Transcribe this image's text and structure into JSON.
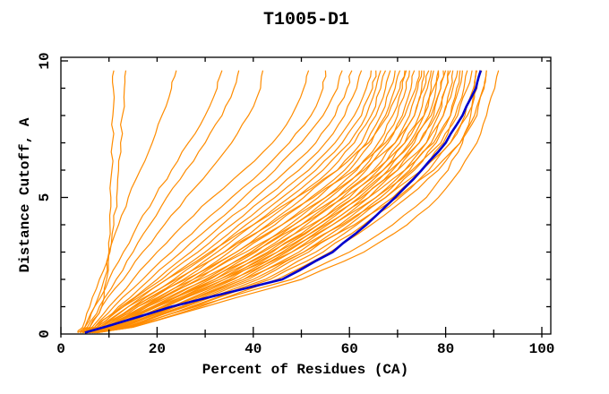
{
  "figure": {
    "background": "#ffffff",
    "frame_color": "#000000"
  },
  "chart_data": {
    "type": "line",
    "title": "T1005-D1",
    "xlabel": "Percent of Residues (CA)",
    "ylabel": "Distance Cutoff, A",
    "xlim": [
      0,
      100
    ],
    "ylim": [
      0,
      10
    ],
    "grid": "off",
    "legend": "none",
    "tick_style": "mirrored, pointing inward, minor ticks x every 10, y every 1",
    "x_major_ticks": [
      0,
      20,
      40,
      60,
      80,
      100
    ],
    "x_minor_ticks": [
      10,
      30,
      50,
      70,
      90
    ],
    "x_tick_labels": [
      "0",
      "20",
      "40",
      "60",
      "80",
      "100"
    ],
    "y_major_ticks": [
      0,
      5,
      10
    ],
    "y_minor_ticks": [
      1,
      2,
      3,
      4,
      6,
      7,
      8,
      9
    ],
    "y_tick_labels": [
      "0",
      "5",
      "10"
    ],
    "colors": {
      "predictions": "#ff8c00",
      "highlight": "#0000cd",
      "axis": "#000000"
    },
    "cutoffs": [
      0.05,
      0.25,
      1,
      2,
      3,
      4,
      5,
      6,
      7,
      8,
      9,
      9.65
    ],
    "highlight_series": {
      "name": "highlighted-model",
      "color": "#0000cd",
      "values": [
        5,
        9,
        23,
        46,
        56.5,
        63.5,
        69.5,
        75,
        80,
        83.5,
        86.3,
        87.3
      ]
    },
    "prediction_series": {
      "name": "predictions",
      "color": "#ff8c00",
      "values": [
        [
          4,
          6,
          8.5,
          9.5,
          10,
          10.2,
          10.4,
          10.6,
          10.7,
          10.8,
          10.9,
          11
        ],
        [
          3.5,
          5,
          7,
          9,
          10.2,
          11,
          11.6,
          12,
          12.4,
          12.8,
          13.2,
          13.5
        ],
        [
          3.5,
          4.5,
          6,
          8,
          10,
          12,
          14,
          16.5,
          19,
          21,
          23,
          24
        ],
        [
          4,
          5,
          7,
          10,
          13,
          16,
          19.5,
          23,
          26.5,
          30,
          32.5,
          33.5
        ],
        [
          4,
          5.5,
          8,
          11.5,
          15,
          18.5,
          22,
          26,
          30,
          33.5,
          36,
          37
        ],
        [
          4.5,
          6,
          8.5,
          13,
          17,
          21.5,
          26,
          31,
          35.5,
          39,
          41.5,
          42
        ],
        [
          4.5,
          6.5,
          10,
          15,
          20,
          25.5,
          31.5,
          38,
          44,
          48,
          50.5,
          51.5
        ],
        [
          5,
          7,
          11,
          17,
          23,
          29,
          35.5,
          42,
          47.5,
          52,
          54.5,
          55
        ],
        [
          5,
          7.5,
          12,
          18.5,
          25,
          31.5,
          38,
          44.5,
          50,
          54.5,
          57.5,
          58.5
        ],
        [
          4,
          7,
          12.5,
          20,
          27,
          33.5,
          40.5,
          47,
          53,
          57,
          59.5,
          60.5
        ],
        [
          4.5,
          7.5,
          13,
          21,
          28.5,
          35.5,
          42.5,
          49.5,
          55,
          59,
          61.5,
          62.5
        ],
        [
          5,
          8,
          14,
          22,
          30,
          37,
          44.5,
          51.5,
          57,
          61,
          63.5,
          64.5
        ],
        [
          5,
          8.5,
          15,
          23.5,
          31.5,
          38.5,
          46,
          53,
          58.5,
          62.5,
          64.8,
          65.5
        ],
        [
          5.5,
          8.5,
          15.5,
          24.5,
          32.5,
          40,
          47.5,
          54.5,
          60,
          63.5,
          65.5,
          66.5
        ],
        [
          5,
          9,
          16,
          25.5,
          34,
          41.5,
          49,
          56,
          61,
          64.5,
          66.5,
          67.5
        ],
        [
          5.5,
          9.5,
          17,
          26.5,
          35,
          43,
          50.5,
          57.5,
          62.5,
          65.5,
          67.5,
          68.5
        ],
        [
          5,
          9.5,
          17.5,
          27.5,
          36.5,
          44.5,
          52,
          59,
          63.5,
          66.5,
          68.5,
          69.5
        ],
        [
          5.5,
          10,
          18,
          28.5,
          37.5,
          46,
          53.5,
          60,
          64.5,
          67.5,
          69.5,
          70.5
        ],
        [
          4.5,
          7.5,
          13,
          22,
          31,
          40,
          49,
          57.5,
          64,
          68,
          70.5,
          71.5
        ],
        [
          5.5,
          10.5,
          19,
          30,
          39.5,
          47.5,
          55,
          61.5,
          66,
          69,
          71,
          71.8
        ],
        [
          5,
          10.5,
          19.5,
          31,
          40.5,
          48.5,
          56,
          62.5,
          67,
          70,
          71.8,
          72.5
        ],
        [
          5.5,
          11,
          20,
          32,
          41.5,
          50,
          57.5,
          63.5,
          68,
          71,
          72.8,
          73.5
        ],
        [
          4.5,
          8,
          14,
          24,
          34,
          43.5,
          52.5,
          61,
          67.5,
          71.5,
          73.8,
          74.5
        ],
        [
          5.5,
          11.5,
          21,
          33,
          43,
          51,
          58.5,
          65,
          69.5,
          72.5,
          74.2,
          75
        ],
        [
          6,
          11.5,
          21.5,
          34,
          44,
          52.5,
          60,
          66,
          70.5,
          73.5,
          75,
          75.5
        ],
        [
          4.5,
          8.5,
          15,
          26,
          36.5,
          46,
          55,
          63,
          69.5,
          73.5,
          75.5,
          76.5
        ],
        [
          6,
          12,
          22,
          35,
          45,
          53.5,
          61,
          67,
          71.5,
          74.5,
          76.2,
          77
        ],
        [
          6,
          12.5,
          23,
          36,
          46,
          54.5,
          62,
          68,
          72.5,
          75.5,
          77,
          77.5
        ],
        [
          5,
          9,
          16,
          27.5,
          38.5,
          48.5,
          57.5,
          65.5,
          71.5,
          75.5,
          77.5,
          78.5
        ],
        [
          6.5,
          12.5,
          23.5,
          37,
          47,
          55.5,
          63,
          69,
          73.5,
          76.5,
          78,
          78.5
        ],
        [
          6.5,
          13,
          24,
          38,
          48,
          56.5,
          64,
          70,
          74.5,
          77.5,
          79,
          79.5
        ],
        [
          5,
          9.5,
          17,
          29,
          40,
          50,
          59,
          67,
          73,
          77,
          79,
          80
        ],
        [
          6.5,
          13.5,
          25,
          39,
          49.5,
          58,
          65.5,
          71.5,
          76,
          78.5,
          80,
          80.5
        ],
        [
          5.5,
          10,
          18,
          30.5,
          42,
          52,
          61,
          68.5,
          74.5,
          78,
          80,
          81
        ],
        [
          7,
          13.5,
          25.5,
          40,
          50.5,
          59,
          66.5,
          72.5,
          77,
          79.5,
          81,
          81.5
        ],
        [
          5.5,
          10.5,
          19,
          32,
          43.5,
          53.5,
          62.5,
          70,
          76,
          79.5,
          81.5,
          82.5
        ],
        [
          7,
          14,
          26,
          41,
          51.5,
          60,
          67.5,
          73.5,
          78,
          81,
          82.3,
          83
        ],
        [
          5.5,
          10.5,
          19.5,
          33,
          45,
          55,
          64,
          71.5,
          77.5,
          81,
          82.8,
          83.5
        ],
        [
          7,
          14.5,
          27,
          42.5,
          53,
          61.5,
          69,
          75,
          79.5,
          82,
          83.8,
          84.5
        ],
        [
          6,
          11,
          20,
          34,
          46.5,
          56.5,
          65.5,
          73,
          79,
          82.5,
          84.5,
          85.5
        ],
        [
          7.5,
          14.5,
          27.5,
          43.5,
          54.5,
          63,
          70.5,
          76.5,
          81,
          84,
          85.8,
          86.5
        ],
        [
          6,
          11.5,
          21,
          35.5,
          48,
          58.5,
          67.5,
          75,
          81,
          84.5,
          86.5,
          87.5
        ],
        [
          6.5,
          12.5,
          23,
          38,
          50.5,
          61,
          70,
          77.5,
          83,
          86,
          87.8,
          88.5
        ],
        [
          7.5,
          15,
          29,
          45,
          56,
          64.5,
          72,
          78.5,
          83,
          86.5,
          88,
          88.5
        ],
        [
          7,
          14,
          28,
          48,
          60,
          69,
          76,
          80.5,
          83.5,
          85.2,
          86,
          86.3
        ],
        [
          7.5,
          15,
          30,
          50,
          63,
          72,
          78.5,
          83,
          86.5,
          88.5,
          90.2,
          91
        ]
      ]
    }
  }
}
